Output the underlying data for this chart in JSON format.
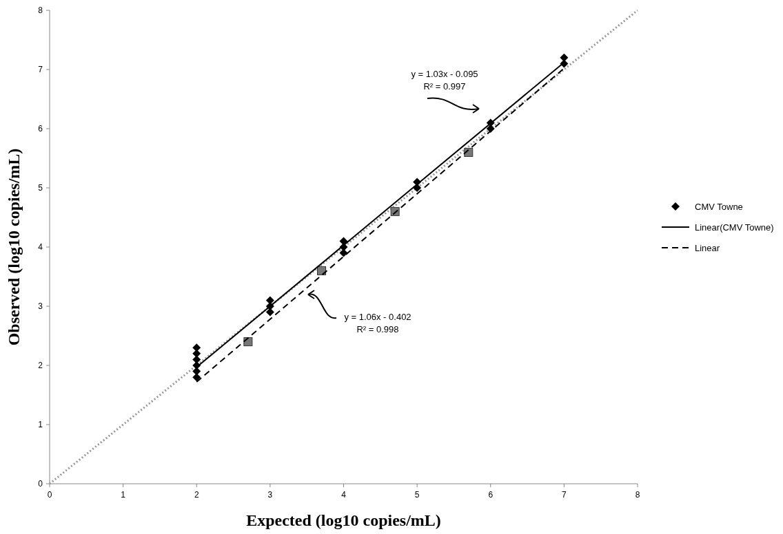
{
  "chart_data": {
    "type": "scatter",
    "xlabel": "Expected (log10 copies/mL)",
    "ylabel": "Observed (log10 copies/mL)",
    "xlim": [
      0,
      8
    ],
    "ylim": [
      0,
      8
    ],
    "xticks": [
      0,
      1,
      2,
      3,
      4,
      5,
      6,
      7,
      8
    ],
    "yticks": [
      0,
      1,
      2,
      3,
      4,
      5,
      6,
      7,
      8
    ],
    "grid": false,
    "legend": "right",
    "series": [
      {
        "type": "line",
        "color": "#999999",
        "line_style": "dotted",
        "x": [
          0,
          8
        ],
        "values": [
          0,
          8
        ]
      },
      {
        "name": "CMV Towne",
        "color": "#000000",
        "marker": "diamond",
        "x": [
          2,
          2,
          2,
          2,
          2,
          2,
          3,
          3,
          3,
          4,
          4,
          4,
          5,
          5,
          6,
          6,
          7,
          7
        ],
        "values": [
          1.8,
          1.9,
          2.0,
          2.1,
          2.2,
          2.3,
          2.9,
          3.0,
          3.1,
          3.9,
          4.0,
          4.1,
          5.0,
          5.1,
          6.0,
          6.1,
          7.1,
          7.2
        ]
      },
      {
        "color": "#777777",
        "marker": "square",
        "x": [
          2.7,
          3.7,
          4.7,
          5.7
        ],
        "values": [
          2.4,
          3.6,
          4.6,
          5.6
        ]
      },
      {
        "type": "line",
        "name": "Linear(CMV Towne)",
        "color": "#000000",
        "line_style": "solid",
        "x": [
          2,
          7
        ],
        "values": [
          1.97,
          7.12
        ]
      },
      {
        "type": "line",
        "name": "Linear",
        "color": "#000000",
        "line_style": "dashed",
        "x": [
          2,
          7
        ],
        "values": [
          1.72,
          7.02
        ]
      }
    ],
    "annotations": [
      "y = 1.03x - 0.095\nR² = 0.997",
      "y = 1.06x - 0.402\nR² = 0.998"
    ]
  }
}
